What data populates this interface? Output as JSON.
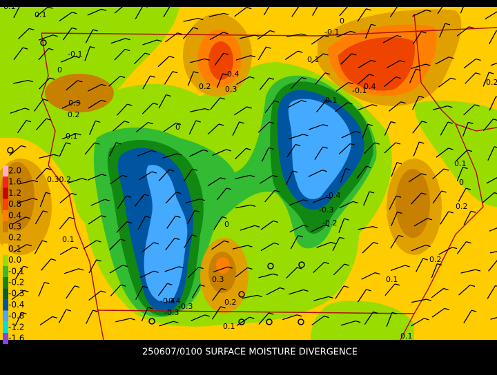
{
  "title": "250607/0100 SURFACE MOISTURE DIVERGENCE",
  "legend": {
    "labels": [
      "2.0",
      "1.6",
      "1.2",
      "0.8",
      "0.4",
      "0.3",
      "0.2",
      "0.1",
      "0.0",
      "-0.1",
      "-0.2",
      "-0.3",
      "-0.4",
      "-0.8",
      "-1.2",
      "-1.6"
    ]
  },
  "contour_labels": [
    "0.1",
    "-0.1",
    "0",
    "0.3",
    "0.2",
    "0.1",
    "0.30.2",
    "0.1",
    "-0.4",
    "0.2",
    "0.3",
    "0",
    "0.1",
    "0",
    "0.1",
    "-0.1",
    "0.4",
    "-0.4",
    "-0.3",
    "-0.2",
    "-0.1",
    "0.1",
    "0",
    "0.2",
    "0.1",
    "-0.2",
    "0",
    "-0.1",
    "-0.4",
    "-0.3",
    "0.3",
    "0.2",
    "0.1",
    "0.1",
    "-0.3",
    "-0.4",
    "0.2"
  ]
}
